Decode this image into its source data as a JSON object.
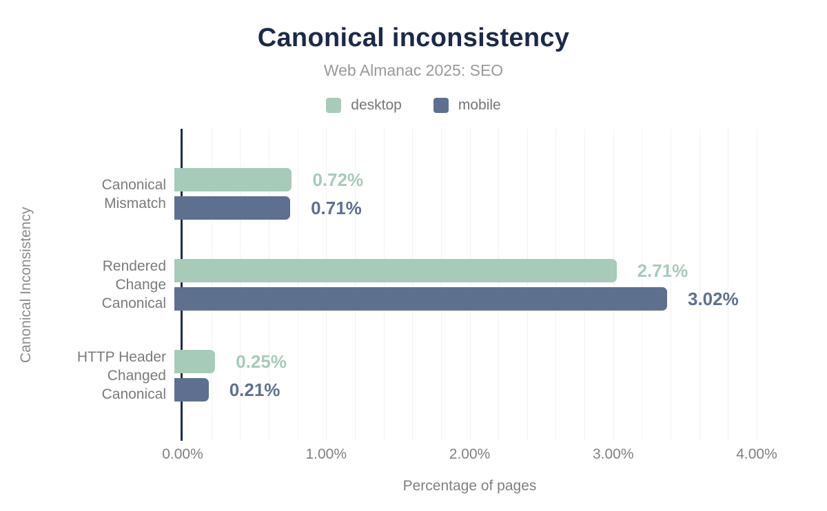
{
  "title": "Canonical inconsistency",
  "subtitle": "Web Almanac 2025: SEO",
  "legend": {
    "items": [
      {
        "label": "desktop",
        "color": "#a6cbb9"
      },
      {
        "label": "mobile",
        "color": "#5e7090"
      }
    ]
  },
  "chart_data": {
    "type": "bar",
    "orientation": "horizontal",
    "title": "Canonical inconsistency",
    "subtitle": "Web Almanac 2025: SEO",
    "xlabel": "Percentage of pages",
    "ylabel": "Canonical Inconsistency",
    "categories": [
      "Canonical Mismatch",
      "Rendered Change Canonical",
      "HTTP Header Changed Canonical"
    ],
    "category_display": [
      "Canonical\nMismatch",
      "Rendered\nChange\nCanonical",
      "HTTP Header\nChanged\nCanonical"
    ],
    "series": [
      {
        "name": "desktop",
        "color": "#a6cbb9",
        "values": [
          0.72,
          2.71,
          0.25
        ],
        "data_labels": [
          "0.72%",
          "2.71%",
          "0.25%"
        ]
      },
      {
        "name": "mobile",
        "color": "#5e7090",
        "values": [
          0.71,
          3.02,
          0.21
        ],
        "data_labels": [
          "0.71%",
          "3.02%",
          "0.21%"
        ]
      }
    ],
    "xaxis": {
      "max": 4.0,
      "grid_step": 0.2,
      "ticks": [
        {
          "value": 0,
          "label": "0.00%"
        },
        {
          "value": 1,
          "label": "1.00%"
        },
        {
          "value": 2,
          "label": "2.00%"
        },
        {
          "value": 3,
          "label": "3.00%"
        },
        {
          "value": 4,
          "label": "4.00%"
        }
      ]
    },
    "grid": true,
    "legend_position": "top"
  },
  "colors": {
    "title": "#1b2a4a",
    "axis_line": "#1b2a4a",
    "grid": "#f0f1f2",
    "text_muted": "#7a7a7a",
    "subtitle": "#9a9a9a"
  }
}
